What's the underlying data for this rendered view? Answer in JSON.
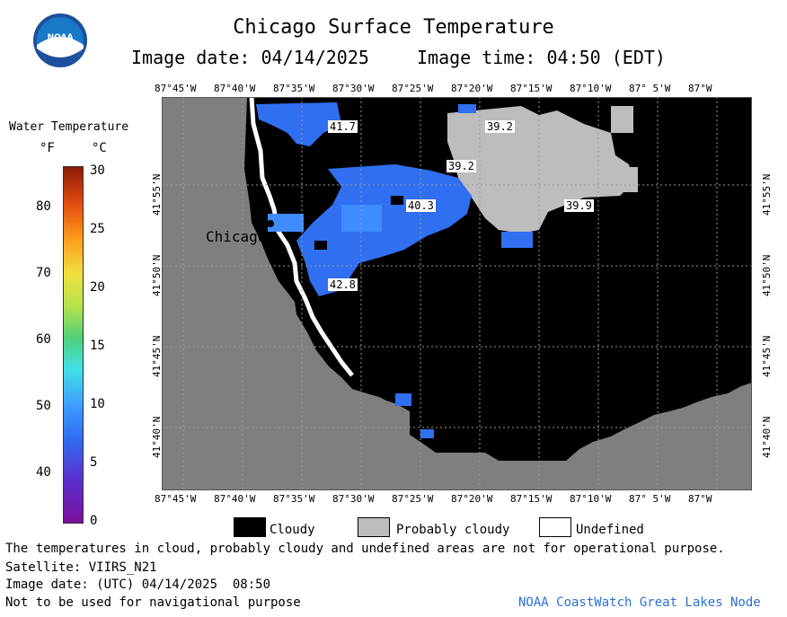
{
  "header": {
    "title": "Chicago Surface Temperature",
    "image_date_label": "Image date: 04/14/2025",
    "image_time_label": "Image time: 04:50 (EDT)"
  },
  "logo": {
    "text": "NOAA"
  },
  "colorbar": {
    "title": "Water Temperature",
    "unit_f": "°F",
    "unit_c": "°C",
    "f_ticks": [
      "80",
      "70",
      "60",
      "50",
      "40"
    ],
    "c_ticks": [
      "30",
      "25",
      "20",
      "15",
      "10",
      "5",
      "0"
    ]
  },
  "axes": {
    "lon_labels": [
      "87°45'W",
      "87°40'W",
      "87°35'W",
      "87°30'W",
      "87°25'W",
      "87°20'W",
      "87°15'W",
      "87°10'W",
      "87° 5'W",
      "87°W"
    ],
    "lat_labels": [
      "41°55'N",
      "41°50'N",
      "41°45'N",
      "41°40'N"
    ]
  },
  "map": {
    "city_label": "Chicago",
    "temperature_labels": [
      "41.7",
      "39.2",
      "39.2",
      "40.3",
      "39.9",
      "42.8"
    ],
    "colors": {
      "cloudy": "#000000",
      "probably_cloudy": "#bdbdbd",
      "land": "#7f7f7f",
      "undefined": "#ffffff",
      "water": "#2f6ff0",
      "water_light": "#3f8cff"
    }
  },
  "legend": {
    "cloudy": "Cloudy",
    "probably_cloudy": "Probably cloudy",
    "undefined": "Undefined"
  },
  "footer": {
    "disclaimer": "The temperatures in cloud, probably cloudy and undefined areas are not for operational purpose.",
    "satellite": "Satellite: VIIRS_N21",
    "utc_date": "Image date: (UTC) 04/14/2025  08:50",
    "nav_warning": "Not to be used for navigational purpose",
    "credit": "NOAA CoastWatch Great Lakes Node"
  }
}
